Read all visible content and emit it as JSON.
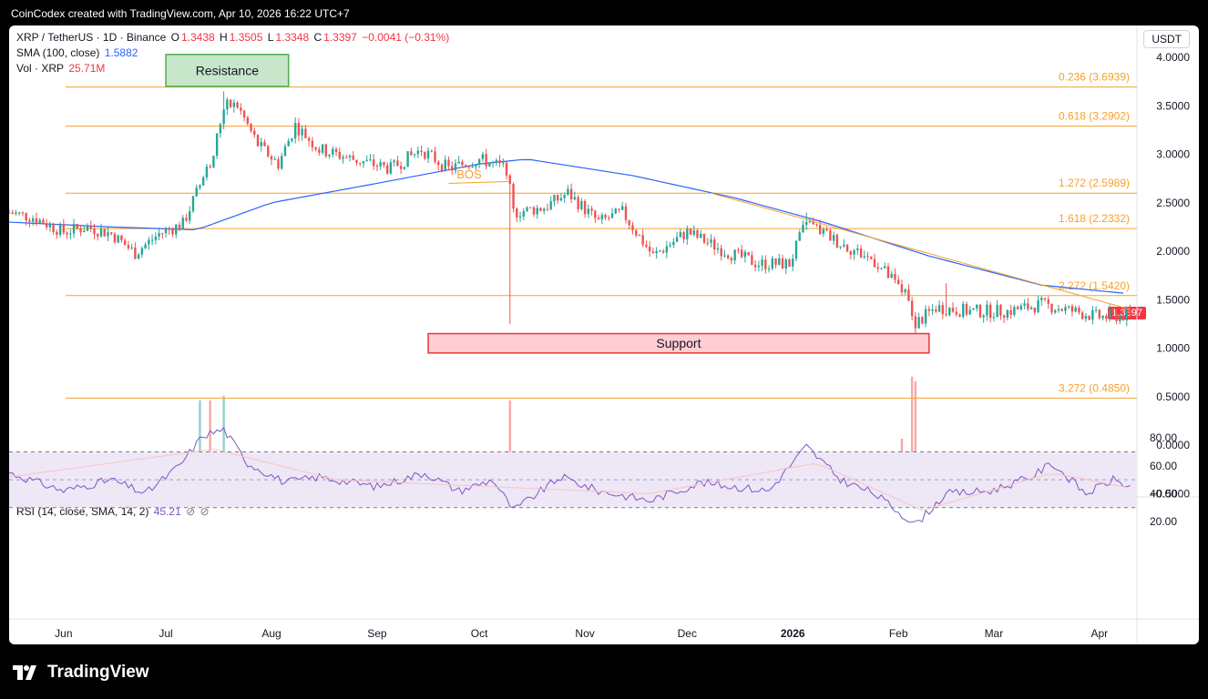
{
  "header": {
    "text": "CoinCodex created with TradingView.com, Apr 10, 2026 16:22 UTC+7"
  },
  "brand": {
    "name": "TradingView"
  },
  "legend": {
    "symbol": "XRP / TetherUS · 1D · Binance",
    "o_label": "O",
    "o": "1.3438",
    "h_label": "H",
    "h": "1.3505",
    "l_label": "L",
    "l": "1.3348",
    "c_label": "C",
    "c": "1.3397",
    "change": "−0.0041 (−0.31%)",
    "sma_label": "SMA (100, close)",
    "sma_value": "1.5882",
    "vol_label": "Vol · XRP",
    "vol_value": "25.71M",
    "rsi_label": "RSI (14, close, SMA, 14, 2)",
    "rsi_value": "45.21"
  },
  "currency_button": "USDT",
  "current_price": "1.3397",
  "colors": {
    "up": "#26a69a",
    "down": "#ef5350",
    "fib": "#f7a02b",
    "sma": "#2962ff",
    "rsi": "#7e57c2",
    "rsi_band": "#ede7f6"
  },
  "chart_data": [
    {
      "type": "candlestick",
      "title": "XRP / TetherUS · 1D · Binance",
      "ylim": [
        -0.5,
        4.0
      ],
      "y_ticks": [
        "4.0000",
        "3.5000",
        "3.0000",
        "2.5000",
        "2.0000",
        "1.5000",
        "1.0000",
        "0.5000",
        "0.0000",
        "−0.5000"
      ],
      "x_ticks": [
        "Jun",
        "Jul",
        "Aug",
        "Sep",
        "Oct",
        "Nov",
        "Dec",
        "2026",
        "Feb",
        "Mar",
        "Apr"
      ],
      "price_path": [
        {
          "x": "2025-05-16",
          "y": 2.4
        },
        {
          "x": "2025-05-23",
          "y": 2.35
        },
        {
          "x": "2025-06-01",
          "y": 2.2
        },
        {
          "x": "2025-06-08",
          "y": 2.25
        },
        {
          "x": "2025-06-15",
          "y": 2.18
        },
        {
          "x": "2025-06-22",
          "y": 1.98
        },
        {
          "x": "2025-06-29",
          "y": 2.18
        },
        {
          "x": "2025-07-06",
          "y": 2.28
        },
        {
          "x": "2025-07-10",
          "y": 2.6
        },
        {
          "x": "2025-07-15",
          "y": 3.0
        },
        {
          "x": "2025-07-18",
          "y": 3.5
        },
        {
          "x": "2025-07-22",
          "y": 3.5
        },
        {
          "x": "2025-07-28",
          "y": 3.1
        },
        {
          "x": "2025-08-03",
          "y": 2.9
        },
        {
          "x": "2025-08-08",
          "y": 3.3
        },
        {
          "x": "2025-08-15",
          "y": 3.05
        },
        {
          "x": "2025-08-25",
          "y": 2.95
        },
        {
          "x": "2025-09-05",
          "y": 2.85
        },
        {
          "x": "2025-09-14",
          "y": 3.05
        },
        {
          "x": "2025-09-22",
          "y": 2.85
        },
        {
          "x": "2025-10-01",
          "y": 2.95
        },
        {
          "x": "2025-10-09",
          "y": 2.85
        },
        {
          "x": "2025-10-11",
          "y": 2.4
        },
        {
          "x": "2025-10-20",
          "y": 2.45
        },
        {
          "x": "2025-10-27",
          "y": 2.6
        },
        {
          "x": "2025-11-05",
          "y": 2.3
        },
        {
          "x": "2025-11-12",
          "y": 2.4
        },
        {
          "x": "2025-11-21",
          "y": 1.95
        },
        {
          "x": "2025-12-01",
          "y": 2.2
        },
        {
          "x": "2025-12-12",
          "y": 2.0
        },
        {
          "x": "2025-12-22",
          "y": 1.87
        },
        {
          "x": "2025-12-31",
          "y": 1.87
        },
        {
          "x": "2026-01-05",
          "y": 2.3
        },
        {
          "x": "2026-01-14",
          "y": 2.1
        },
        {
          "x": "2026-01-25",
          "y": 1.9
        },
        {
          "x": "2026-02-03",
          "y": 1.55
        },
        {
          "x": "2026-02-06",
          "y": 1.25
        },
        {
          "x": "2026-02-12",
          "y": 1.42
        },
        {
          "x": "2026-02-22",
          "y": 1.38
        },
        {
          "x": "2026-03-05",
          "y": 1.38
        },
        {
          "x": "2026-03-15",
          "y": 1.45
        },
        {
          "x": "2026-03-22",
          "y": 1.4
        },
        {
          "x": "2026-04-01",
          "y": 1.32
        },
        {
          "x": "2026-04-10",
          "y": 1.34
        }
      ],
      "spikes": [
        {
          "x": "2025-10-10",
          "low": 1.25
        },
        {
          "x": "2026-02-06",
          "low": 1.12
        },
        {
          "x": "2025-07-18",
          "high": 3.65
        },
        {
          "x": "2026-02-15",
          "high": 1.67
        },
        {
          "x": "2026-01-05",
          "high": 2.4
        }
      ],
      "sma_path": [
        {
          "x": "2025-05-16",
          "y": 2.3
        },
        {
          "x": "2025-06-15",
          "y": 2.25
        },
        {
          "x": "2025-07-10",
          "y": 2.22
        },
        {
          "x": "2025-08-01",
          "y": 2.5
        },
        {
          "x": "2025-09-01",
          "y": 2.7
        },
        {
          "x": "2025-10-01",
          "y": 2.9
        },
        {
          "x": "2025-10-15",
          "y": 2.95
        },
        {
          "x": "2025-11-15",
          "y": 2.78
        },
        {
          "x": "2025-12-15",
          "y": 2.55
        },
        {
          "x": "2026-01-10",
          "y": 2.3
        },
        {
          "x": "2026-02-10",
          "y": 1.95
        },
        {
          "x": "2026-03-15",
          "y": 1.65
        },
        {
          "x": "2026-04-10",
          "y": 1.56
        }
      ],
      "fib_levels": [
        {
          "ratio": "0.236",
          "value": "3.6939"
        },
        {
          "ratio": "0.618",
          "value": "3.2902"
        },
        {
          "ratio": "1.272",
          "value": "2.5989"
        },
        {
          "ratio": "1.618",
          "value": "2.2332"
        },
        {
          "ratio": "2.272",
          "value": "1.5420"
        },
        {
          "ratio": "3.272",
          "value": "0.4850"
        }
      ],
      "trendline": [
        {
          "x": "2025-12-08",
          "y": 2.6
        },
        {
          "x": "2026-04-10",
          "y": 1.4
        }
      ],
      "bos_line": [
        {
          "x": "2025-09-22",
          "y": 2.7
        },
        {
          "x": "2025-10-10",
          "y": 2.72
        }
      ],
      "annotations": {
        "resistance": {
          "text": "Resistance",
          "x_start": "2025-07-01",
          "x_end": "2025-08-06",
          "y_low": 3.7,
          "y_high": 4.03
        },
        "support": {
          "text": "Support",
          "x_start": "2025-09-16",
          "x_end": "2026-02-10",
          "y_low": 0.95,
          "y_high": 1.15
        },
        "bos": {
          "text": "BOS",
          "x": "2025-09-28",
          "y": 2.8
        }
      },
      "volume_spikes": [
        {
          "x": "2025-07-11",
          "v": 1.0
        },
        {
          "x": "2025-07-14",
          "v": 1.0
        },
        {
          "x": "2025-07-18",
          "v": 1.05
        },
        {
          "x": "2025-10-10",
          "v": 1.0
        },
        {
          "x": "2026-02-05",
          "v": 1.25
        },
        {
          "x": "2026-02-06",
          "v": 1.2
        },
        {
          "x": "2026-01-05",
          "v": 0.45
        },
        {
          "x": "2026-02-02",
          "v": 0.6
        }
      ]
    },
    {
      "type": "line",
      "title": "RSI (14, close, SMA, 14, 2)",
      "ylim": [
        15,
        90
      ],
      "y_ticks": [
        "80.00",
        "60.00",
        "40.00",
        "20.00"
      ],
      "band": [
        30,
        70
      ],
      "mid": 50,
      "rsi_path": [
        {
          "x": "2025-05-16",
          "y": 55
        },
        {
          "x": "2025-06-01",
          "y": 42
        },
        {
          "x": "2025-06-15",
          "y": 50
        },
        {
          "x": "2025-06-25",
          "y": 40
        },
        {
          "x": "2025-07-05",
          "y": 60
        },
        {
          "x": "2025-07-12",
          "y": 82
        },
        {
          "x": "2025-07-18",
          "y": 86
        },
        {
          "x": "2025-07-25",
          "y": 62
        },
        {
          "x": "2025-08-05",
          "y": 48
        },
        {
          "x": "2025-08-15",
          "y": 52
        },
        {
          "x": "2025-09-01",
          "y": 45
        },
        {
          "x": "2025-09-15",
          "y": 55
        },
        {
          "x": "2025-09-25",
          "y": 42
        },
        {
          "x": "2025-10-05",
          "y": 50
        },
        {
          "x": "2025-10-11",
          "y": 28
        },
        {
          "x": "2025-10-25",
          "y": 52
        },
        {
          "x": "2025-11-05",
          "y": 42
        },
        {
          "x": "2025-11-20",
          "y": 35
        },
        {
          "x": "2025-12-05",
          "y": 48
        },
        {
          "x": "2025-12-25",
          "y": 42
        },
        {
          "x": "2026-01-05",
          "y": 74
        },
        {
          "x": "2026-01-15",
          "y": 50
        },
        {
          "x": "2026-01-25",
          "y": 40
        },
        {
          "x": "2026-02-06",
          "y": 18
        },
        {
          "x": "2026-02-15",
          "y": 40
        },
        {
          "x": "2026-02-28",
          "y": 42
        },
        {
          "x": "2026-03-12",
          "y": 52
        },
        {
          "x": "2026-03-18",
          "y": 62
        },
        {
          "x": "2026-03-28",
          "y": 40
        },
        {
          "x": "2026-04-05",
          "y": 50
        },
        {
          "x": "2026-04-10",
          "y": 45
        }
      ],
      "rsi_sma_path": [
        {
          "x": "2025-05-16",
          "y": 52
        },
        {
          "x": "2025-07-15",
          "y": 72
        },
        {
          "x": "2025-08-20",
          "y": 50
        },
        {
          "x": "2025-11-20",
          "y": 40
        },
        {
          "x": "2026-01-08",
          "y": 62
        },
        {
          "x": "2026-02-08",
          "y": 28
        },
        {
          "x": "2026-03-18",
          "y": 55
        },
        {
          "x": "2026-04-10",
          "y": 44
        }
      ]
    }
  ]
}
